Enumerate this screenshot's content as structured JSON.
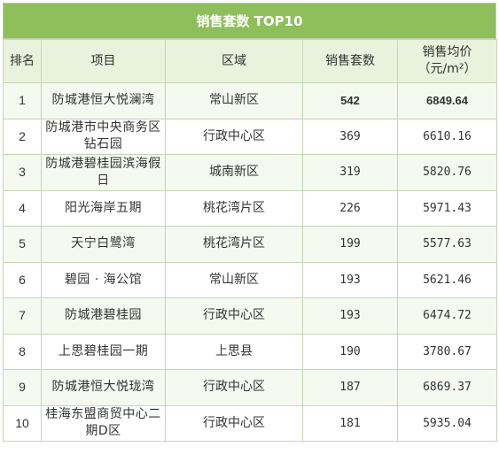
{
  "title": "销售套数 TOP10",
  "headers": {
    "rank": "排名",
    "project": "项目",
    "district": "区域",
    "units": "销售套数",
    "price_line1": "销售均价",
    "price_line2": "（元/m²）"
  },
  "rows": [
    {
      "rank": "1",
      "project": "防城港恒大悦澜湾",
      "district": "常山新区",
      "units": "542",
      "price": "6849.64"
    },
    {
      "rank": "2",
      "project": "防城港市中央商务区钻石园",
      "district": "行政中心区",
      "units": "369",
      "price": "6610.16"
    },
    {
      "rank": "3",
      "project": "防城港碧桂园滨海假日",
      "district": "城南新区",
      "units": "319",
      "price": "5820.76"
    },
    {
      "rank": "4",
      "project": "阳光海岸五期",
      "district": "桃花湾片区",
      "units": "226",
      "price": "5971.43"
    },
    {
      "rank": "5",
      "project": "天宁白鹭湾",
      "district": "桃花湾片区",
      "units": "199",
      "price": "5577.63"
    },
    {
      "rank": "6",
      "project": "碧园 · 海公馆",
      "district": "常山新区",
      "units": "193",
      "price": "5621.46"
    },
    {
      "rank": "7",
      "project": "防城港碧桂园",
      "district": "行政中心区",
      "units": "193",
      "price": "6474.72"
    },
    {
      "rank": "8",
      "project": "上思碧桂园一期",
      "district": "上思县",
      "units": "190",
      "price": "3780.67"
    },
    {
      "rank": "9",
      "project": "防城港恒大悦珑湾",
      "district": "行政中心区",
      "units": "187",
      "price": "6869.37"
    },
    {
      "rank": "10",
      "project": "桂海东盟商贸中心二期D区",
      "district": "行政中心区",
      "units": "181",
      "price": "5935.04"
    }
  ]
}
